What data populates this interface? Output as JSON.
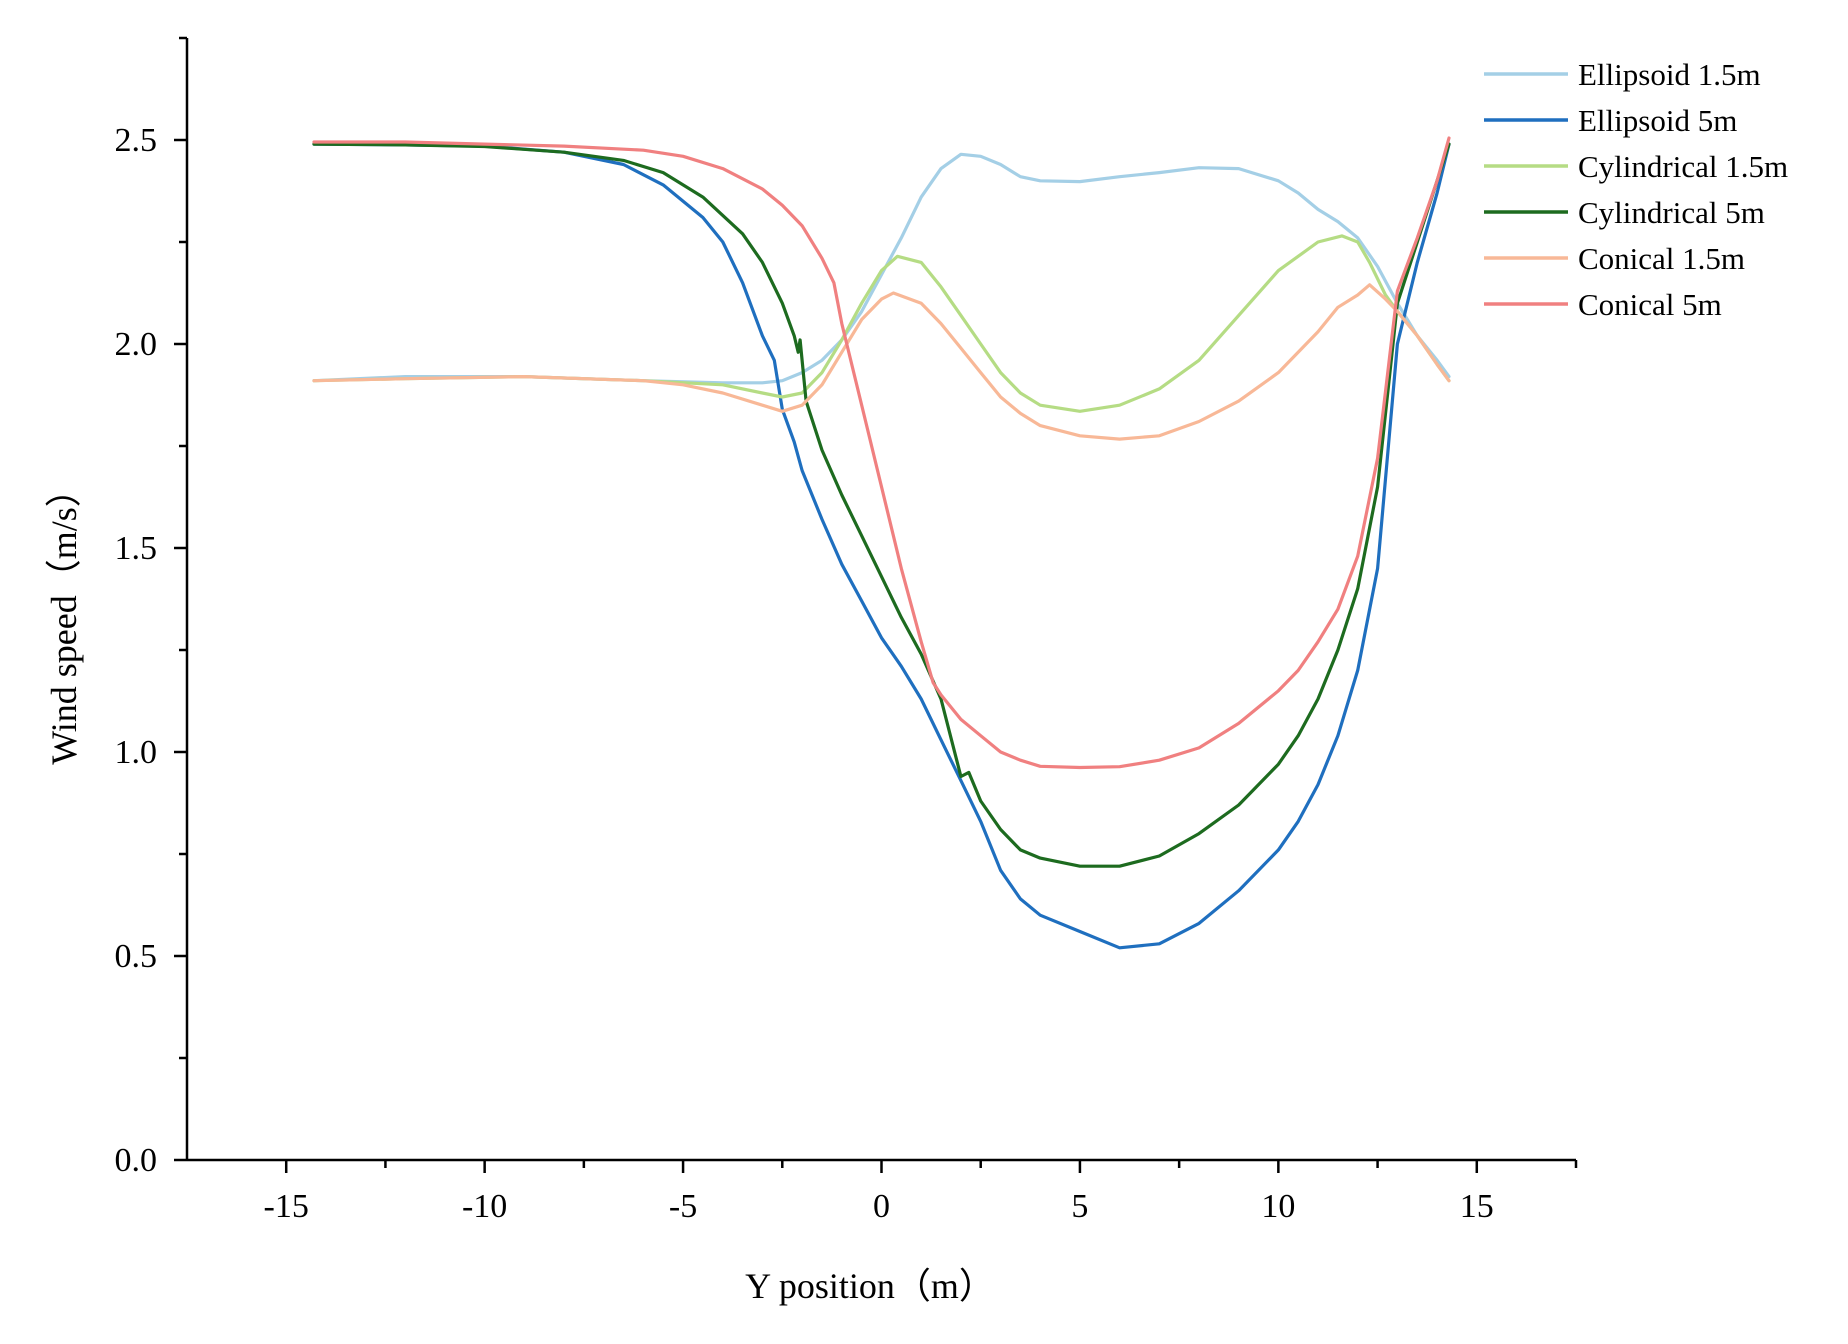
{
  "chart_data": {
    "type": "line",
    "title": "",
    "xlabel": "Y position（m）",
    "ylabel": "Wind speed（m/s）",
    "xlim": [
      -17.5,
      17.5
    ],
    "ylim": [
      0,
      2.75
    ],
    "x_ticks": [
      -15,
      -10,
      -5,
      0,
      5,
      10,
      15
    ],
    "x_tick_labels": [
      "-15",
      "-10",
      "-5",
      "0",
      "5",
      "10",
      "15"
    ],
    "y_ticks": [
      0,
      0.5,
      1,
      1.5,
      2,
      2.5
    ],
    "y_tick_labels": [
      "0.0",
      "0.5",
      "1.0",
      "1.5",
      "2.0",
      "2.5"
    ],
    "grid": false,
    "legend_position": "top-right",
    "series": [
      {
        "name": "Ellipsoid 1.5m",
        "color": "#a4cfe6",
        "points": [
          [
            -14.3,
            1.91
          ],
          [
            -12,
            1.92
          ],
          [
            -9,
            1.92
          ],
          [
            -6,
            1.91
          ],
          [
            -4,
            1.905
          ],
          [
            -3,
            1.905
          ],
          [
            -2.5,
            1.91
          ],
          [
            -2,
            1.93
          ],
          [
            -1.5,
            1.96
          ],
          [
            -1,
            2.01
          ],
          [
            -0.5,
            2.08
          ],
          [
            0,
            2.17
          ],
          [
            0.5,
            2.26
          ],
          [
            1,
            2.36
          ],
          [
            1.5,
            2.43
          ],
          [
            2,
            2.465
          ],
          [
            2.5,
            2.46
          ],
          [
            3,
            2.44
          ],
          [
            3.5,
            2.41
          ],
          [
            4,
            2.4
          ],
          [
            5,
            2.398
          ],
          [
            6,
            2.41
          ],
          [
            7,
            2.42
          ],
          [
            8,
            2.432
          ],
          [
            9,
            2.43
          ],
          [
            10,
            2.4
          ],
          [
            10.5,
            2.37
          ],
          [
            11,
            2.33
          ],
          [
            11.5,
            2.3
          ],
          [
            12,
            2.26
          ],
          [
            12.5,
            2.19
          ],
          [
            13,
            2.1
          ],
          [
            13.5,
            2.02
          ],
          [
            14,
            1.96
          ],
          [
            14.3,
            1.92
          ]
        ]
      },
      {
        "name": "Ellipsoid 5m",
        "color": "#1f6fbf",
        "points": [
          [
            -14.3,
            2.49
          ],
          [
            -12,
            2.488
          ],
          [
            -10,
            2.485
          ],
          [
            -8,
            2.47
          ],
          [
            -6.5,
            2.44
          ],
          [
            -5.5,
            2.39
          ],
          [
            -4.5,
            2.31
          ],
          [
            -4,
            2.25
          ],
          [
            -3.5,
            2.15
          ],
          [
            -3,
            2.02
          ],
          [
            -2.7,
            1.96
          ],
          [
            -2.5,
            1.84
          ],
          [
            -2.2,
            1.76
          ],
          [
            -2,
            1.69
          ],
          [
            -1.5,
            1.57
          ],
          [
            -1,
            1.46
          ],
          [
            -0.5,
            1.37
          ],
          [
            0,
            1.28
          ],
          [
            0.5,
            1.21
          ],
          [
            1,
            1.13
          ],
          [
            1.5,
            1.03
          ],
          [
            2,
            0.93
          ],
          [
            2.5,
            0.83
          ],
          [
            3,
            0.71
          ],
          [
            3.5,
            0.64
          ],
          [
            4,
            0.6
          ],
          [
            5,
            0.56
          ],
          [
            6,
            0.52
          ],
          [
            7,
            0.53
          ],
          [
            8,
            0.58
          ],
          [
            9,
            0.66
          ],
          [
            10,
            0.76
          ],
          [
            10.5,
            0.83
          ],
          [
            11,
            0.92
          ],
          [
            11.5,
            1.04
          ],
          [
            12,
            1.2
          ],
          [
            12.5,
            1.45
          ],
          [
            13,
            2.0
          ],
          [
            13.5,
            2.2
          ],
          [
            14,
            2.37
          ],
          [
            14.3,
            2.49
          ]
        ]
      },
      {
        "name": "Cylindrical 1.5m",
        "color": "#b5dc84",
        "points": [
          [
            -14.3,
            1.91
          ],
          [
            -12,
            1.915
          ],
          [
            -9,
            1.92
          ],
          [
            -6,
            1.91
          ],
          [
            -4,
            1.9
          ],
          [
            -3,
            1.88
          ],
          [
            -2.5,
            1.87
          ],
          [
            -2,
            1.88
          ],
          [
            -1.5,
            1.93
          ],
          [
            -1,
            2.01
          ],
          [
            -0.5,
            2.1
          ],
          [
            0,
            2.18
          ],
          [
            0.4,
            2.215
          ],
          [
            1,
            2.2
          ],
          [
            1.5,
            2.14
          ],
          [
            2,
            2.07
          ],
          [
            2.5,
            2.0
          ],
          [
            3,
            1.93
          ],
          [
            3.5,
            1.88
          ],
          [
            4,
            1.85
          ],
          [
            5,
            1.835
          ],
          [
            6,
            1.85
          ],
          [
            7,
            1.89
          ],
          [
            8,
            1.96
          ],
          [
            9,
            2.07
          ],
          [
            10,
            2.18
          ],
          [
            11,
            2.25
          ],
          [
            11.6,
            2.265
          ],
          [
            12,
            2.25
          ],
          [
            12.3,
            2.2
          ],
          [
            12.7,
            2.12
          ],
          [
            13,
            2.08
          ],
          [
            13.5,
            2.02
          ],
          [
            14,
            1.95
          ],
          [
            14.3,
            1.91
          ]
        ]
      },
      {
        "name": "Cylindrical 5m",
        "color": "#1d6b1f",
        "points": [
          [
            -14.3,
            2.49
          ],
          [
            -12,
            2.488
          ],
          [
            -10,
            2.484
          ],
          [
            -8,
            2.47
          ],
          [
            -6.5,
            2.45
          ],
          [
            -5.5,
            2.42
          ],
          [
            -4.5,
            2.36
          ],
          [
            -3.5,
            2.27
          ],
          [
            -3,
            2.2
          ],
          [
            -2.5,
            2.1
          ],
          [
            -2.2,
            2.02
          ],
          [
            -2.1,
            1.98
          ],
          [
            -2.05,
            2.01
          ],
          [
            -2,
            1.96
          ],
          [
            -1.9,
            1.86
          ],
          [
            -1.5,
            1.74
          ],
          [
            -1,
            1.63
          ],
          [
            -0.5,
            1.53
          ],
          [
            0,
            1.43
          ],
          [
            0.5,
            1.33
          ],
          [
            1,
            1.24
          ],
          [
            1.5,
            1.13
          ],
          [
            2,
            0.94
          ],
          [
            2.2,
            0.95
          ],
          [
            2.5,
            0.88
          ],
          [
            3,
            0.81
          ],
          [
            3.5,
            0.76
          ],
          [
            4,
            0.74
          ],
          [
            5,
            0.72
          ],
          [
            6,
            0.72
          ],
          [
            7,
            0.745
          ],
          [
            8,
            0.8
          ],
          [
            9,
            0.87
          ],
          [
            10,
            0.97
          ],
          [
            10.5,
            1.04
          ],
          [
            11,
            1.13
          ],
          [
            11.5,
            1.25
          ],
          [
            12,
            1.4
          ],
          [
            12.5,
            1.65
          ],
          [
            13,
            2.1
          ],
          [
            13.5,
            2.25
          ],
          [
            14,
            2.4
          ],
          [
            14.3,
            2.49
          ]
        ]
      },
      {
        "name": "Conical 1.5m",
        "color": "#f8b897",
        "points": [
          [
            -14.3,
            1.91
          ],
          [
            -12,
            1.915
          ],
          [
            -9,
            1.92
          ],
          [
            -6,
            1.91
          ],
          [
            -5,
            1.9
          ],
          [
            -4,
            1.88
          ],
          [
            -3,
            1.85
          ],
          [
            -2.5,
            1.835
          ],
          [
            -2,
            1.85
          ],
          [
            -1.5,
            1.9
          ],
          [
            -1,
            1.98
          ],
          [
            -0.5,
            2.06
          ],
          [
            0,
            2.11
          ],
          [
            0.3,
            2.125
          ],
          [
            1,
            2.1
          ],
          [
            1.5,
            2.05
          ],
          [
            2,
            1.99
          ],
          [
            2.5,
            1.93
          ],
          [
            3,
            1.87
          ],
          [
            3.5,
            1.83
          ],
          [
            4,
            1.8
          ],
          [
            5,
            1.775
          ],
          [
            6,
            1.767
          ],
          [
            7,
            1.775
          ],
          [
            8,
            1.81
          ],
          [
            9,
            1.86
          ],
          [
            10,
            1.93
          ],
          [
            11,
            2.03
          ],
          [
            11.5,
            2.09
          ],
          [
            12,
            2.12
          ],
          [
            12.3,
            2.145
          ],
          [
            12.7,
            2.11
          ],
          [
            13,
            2.08
          ],
          [
            13.5,
            2.02
          ],
          [
            14,
            1.95
          ],
          [
            14.3,
            1.91
          ]
        ]
      },
      {
        "name": "Conical 5m",
        "color": "#f08080",
        "points": [
          [
            -14.3,
            2.495
          ],
          [
            -12,
            2.495
          ],
          [
            -10,
            2.49
          ],
          [
            -8,
            2.485
          ],
          [
            -6,
            2.475
          ],
          [
            -5,
            2.46
          ],
          [
            -4,
            2.43
          ],
          [
            -3,
            2.38
          ],
          [
            -2.5,
            2.34
          ],
          [
            -2,
            2.29
          ],
          [
            -1.5,
            2.21
          ],
          [
            -1.2,
            2.15
          ],
          [
            -1,
            2.05
          ],
          [
            -0.5,
            1.85
          ],
          [
            0,
            1.65
          ],
          [
            0.5,
            1.45
          ],
          [
            1,
            1.27
          ],
          [
            1.3,
            1.17
          ],
          [
            1.5,
            1.14
          ],
          [
            2,
            1.08
          ],
          [
            2.5,
            1.04
          ],
          [
            3,
            1.0
          ],
          [
            3.5,
            0.98
          ],
          [
            4,
            0.965
          ],
          [
            5,
            0.962
          ],
          [
            6,
            0.964
          ],
          [
            7,
            0.98
          ],
          [
            8,
            1.01
          ],
          [
            9,
            1.07
          ],
          [
            10,
            1.15
          ],
          [
            10.5,
            1.2
          ],
          [
            11,
            1.27
          ],
          [
            11.5,
            1.35
          ],
          [
            12,
            1.48
          ],
          [
            12.5,
            1.72
          ],
          [
            13,
            2.13
          ],
          [
            13.5,
            2.26
          ],
          [
            14,
            2.4
          ],
          [
            14.3,
            2.505
          ]
        ]
      }
    ]
  }
}
